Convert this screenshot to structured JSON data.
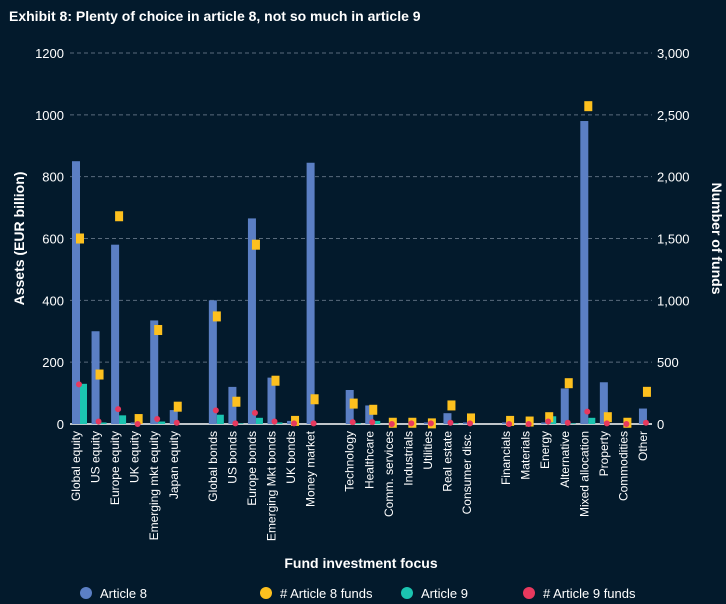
{
  "chart_data": {
    "type": "bar",
    "title": "Exhibit 8: Plenty of choice in article 8, not so much in article 9",
    "xlabel": "Fund investment focus",
    "ylabel": "Assets (EUR billion)",
    "y2label": "Number of funds",
    "ylim": [
      0,
      1200
    ],
    "y2lim": [
      0,
      3000
    ],
    "yticks": [
      "0",
      "200",
      "400",
      "600",
      "800",
      "1000",
      "1200"
    ],
    "y2ticks": [
      "0",
      "500",
      "1,000",
      "1,500",
      "2,000",
      "2,500",
      "3,000"
    ],
    "grid": true,
    "legend_position": "bottom",
    "groups": [
      [
        "Global equity",
        "US equity",
        "Europe equity",
        "UK equity",
        "Emerging mkt equity",
        "Japan equity"
      ],
      [
        "Global bonds",
        "US bonds",
        "Europe bonds",
        "Emerging Mkt bonds",
        "UK bonds",
        "Money market"
      ],
      [
        "Technology",
        "Healthcare",
        "Comm. services",
        "Industrials",
        "Utilities",
        "Real estate",
        "Consumer disc."
      ],
      [
        "Financials",
        "Materials",
        "Energy",
        "Alternative",
        "Mixed allocation",
        "Property",
        "Commodities",
        "Other"
      ]
    ],
    "series": [
      {
        "name": "Article 8",
        "kind": "bar",
        "axis": "left",
        "color": "#5b7fc4",
        "values": [
          850,
          300,
          580,
          5,
          335,
          45,
          400,
          120,
          665,
          150,
          10,
          845,
          110,
          60,
          0,
          0,
          5,
          35,
          5,
          5,
          0,
          5,
          115,
          980,
          135,
          0,
          50
        ]
      },
      {
        "name": "# Article 8 funds",
        "kind": "square",
        "axis": "right",
        "color": "#fdc01e",
        "values": [
          1500,
          400,
          1680,
          40,
          760,
          140,
          870,
          180,
          1450,
          350,
          25,
          200,
          165,
          115,
          10,
          10,
          5,
          150,
          45,
          25,
          20,
          55,
          330,
          2570,
          55,
          10,
          260
        ]
      },
      {
        "name": "Article 9",
        "kind": "bar",
        "axis": "left",
        "color": "#1bc4b0",
        "values": [
          130,
          5,
          28,
          0,
          8,
          0,
          30,
          2,
          20,
          5,
          0,
          0,
          3,
          10,
          0,
          0,
          0,
          2,
          0,
          0,
          0,
          25,
          2,
          20,
          0,
          0,
          0
        ]
      },
      {
        "name": "# Article 9 funds",
        "kind": "dot",
        "axis": "right",
        "color": "#e8395e",
        "values": [
          320,
          20,
          120,
          0,
          40,
          10,
          110,
          5,
          90,
          20,
          5,
          5,
          15,
          15,
          0,
          5,
          5,
          10,
          5,
          0,
          0,
          20,
          10,
          100,
          5,
          0,
          10
        ]
      }
    ]
  }
}
